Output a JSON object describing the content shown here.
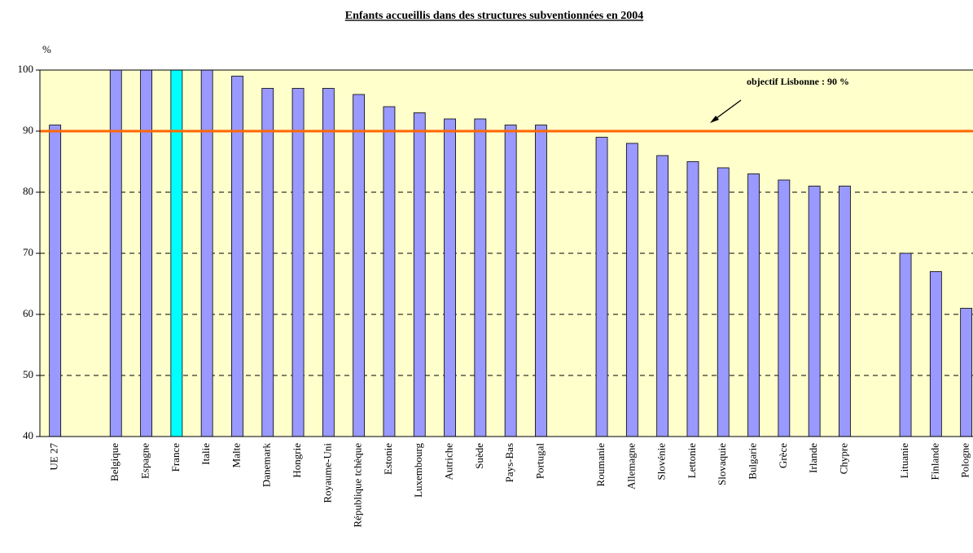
{
  "chart_data": {
    "type": "bar",
    "title": "Enfants accueillis dans des structures subventionnées en 2004",
    "y_label": "%",
    "categories": [
      "UE 27",
      null,
      "Belgique",
      "Espagne",
      "France",
      "Italie",
      "Malte",
      "Danemark",
      "Hongrie",
      "Royaume-Uni",
      "République tchèque",
      "Estonie",
      "Luxembourg",
      "Autriche",
      "Suède",
      "Pays-Bas",
      "Portugal",
      null,
      "Roumanie",
      "Allemagne",
      "Slovénie",
      "Lettonie",
      "Slovaquie",
      "Bulgarie",
      "Grèce",
      "Irlande",
      "Chypre",
      null,
      "Lituanie",
      "Finlande",
      "Pologne"
    ],
    "values": [
      91,
      null,
      100,
      100,
      100,
      100,
      99,
      97,
      97,
      97,
      96,
      94,
      93,
      92,
      92,
      91,
      91,
      null,
      89,
      88,
      86,
      85,
      84,
      83,
      82,
      81,
      81,
      null,
      70,
      67,
      61
    ],
    "colors": [
      "#9999ff",
      null,
      "#9999ff",
      "#9999ff",
      "#00ffff",
      "#9999ff",
      "#9999ff",
      "#9999ff",
      "#9999ff",
      "#9999ff",
      "#9999ff",
      "#9999ff",
      "#9999ff",
      "#9999ff",
      "#9999ff",
      "#9999ff",
      "#9999ff",
      null,
      "#9999ff",
      "#9999ff",
      "#9999ff",
      "#9999ff",
      "#9999ff",
      "#9999ff",
      "#9999ff",
      "#9999ff",
      "#9999ff",
      null,
      "#9999ff",
      "#9999ff",
      "#9999ff"
    ],
    "ylim": [
      40,
      100
    ],
    "yticks": [
      40,
      50,
      60,
      70,
      80,
      90,
      100
    ],
    "grid": true,
    "target": {
      "value": 90,
      "color": "#ff6600",
      "label": "objectif Lisbonne : 90 %"
    }
  }
}
